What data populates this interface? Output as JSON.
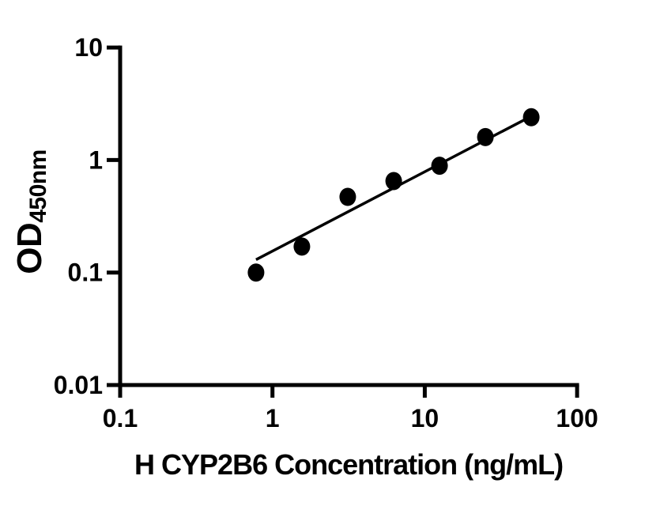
{
  "chart_data": {
    "type": "scatter",
    "title": "",
    "xlabel": "H CYP2B6 Concentration (ng/mL)",
    "ylabel": {
      "main": "OD",
      "sub": "450nm"
    },
    "x_scale": "log",
    "y_scale": "log",
    "xlim": [
      0.1,
      100
    ],
    "ylim": [
      0.01,
      10
    ],
    "grid": false,
    "legend": false,
    "x_ticks": [
      {
        "value": 0.1,
        "label": "0.1"
      },
      {
        "value": 1,
        "label": "1"
      },
      {
        "value": 10,
        "label": "10"
      },
      {
        "value": 100,
        "label": "100"
      }
    ],
    "y_ticks": [
      {
        "value": 0.01,
        "label": "0.01"
      },
      {
        "value": 0.1,
        "label": "0.1"
      },
      {
        "value": 1,
        "label": "1"
      },
      {
        "value": 10,
        "label": "10"
      }
    ],
    "points": [
      {
        "x": 0.78,
        "y": 0.1
      },
      {
        "x": 1.56,
        "y": 0.17
      },
      {
        "x": 3.12,
        "y": 0.47
      },
      {
        "x": 6.25,
        "y": 0.65
      },
      {
        "x": 12.5,
        "y": 0.89
      },
      {
        "x": 25,
        "y": 1.6
      },
      {
        "x": 50,
        "y": 2.4
      }
    ],
    "fit_line": {
      "x1": 0.78,
      "y1": 0.13,
      "x2": 50,
      "y2": 2.45
    },
    "colors": {
      "axis": "#000000",
      "marker": "#000000",
      "line": "#000000",
      "text": "#000000"
    }
  }
}
